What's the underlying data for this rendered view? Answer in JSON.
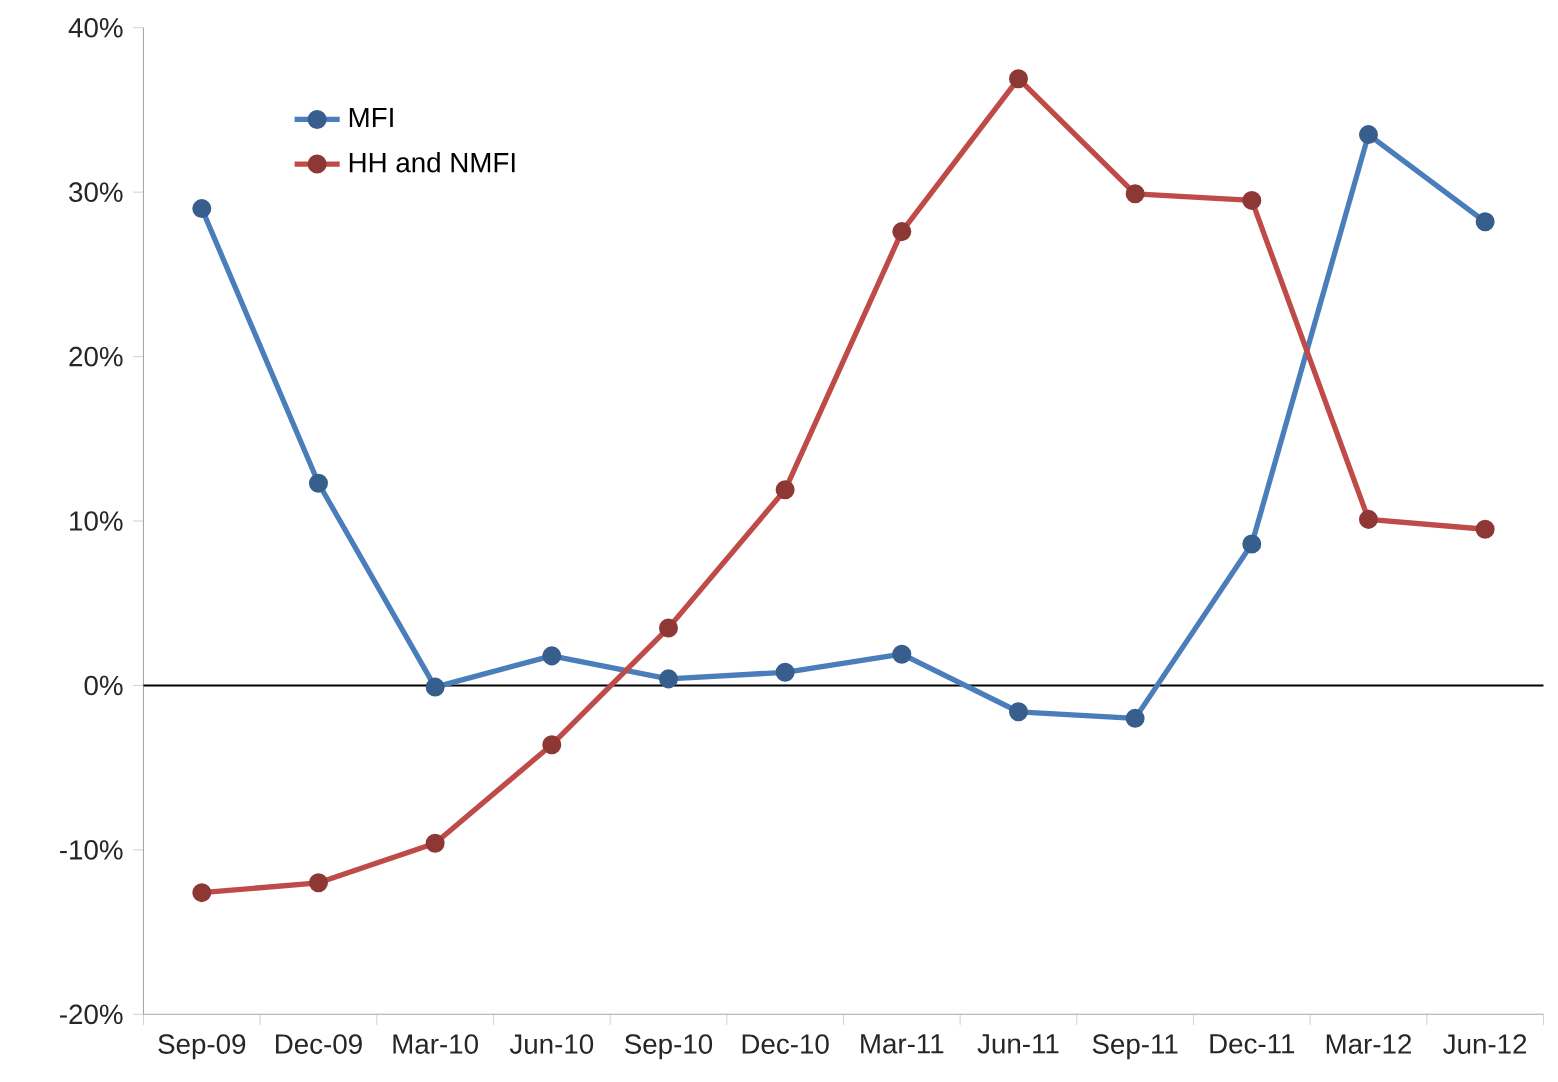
{
  "chart_data": {
    "type": "line",
    "categories": [
      "Sep-09",
      "Dec-09",
      "Mar-10",
      "Jun-10",
      "Sep-10",
      "Dec-10",
      "Mar-11",
      "Jun-11",
      "Sep-11",
      "Dec-11",
      "Mar-12",
      "Jun-12"
    ],
    "series": [
      {
        "name": "MFI",
        "color": "#4a7ebb",
        "values": [
          29.0,
          12.3,
          -0.1,
          1.8,
          0.4,
          0.8,
          1.9,
          -1.6,
          -2.0,
          8.6,
          33.5,
          28.2
        ]
      },
      {
        "name": "HH and NMFI",
        "color": "#be4b48",
        "values": [
          -12.6,
          -12.0,
          -9.6,
          -3.6,
          3.5,
          11.9,
          27.6,
          36.9,
          29.9,
          29.5,
          10.1,
          9.5
        ]
      }
    ],
    "ylim": [
      -20,
      40
    ],
    "yticks": [
      {
        "value": -20,
        "label": "-20%"
      },
      {
        "value": -10,
        "label": "-10%"
      },
      {
        "value": 0,
        "label": "0%"
      },
      {
        "value": 10,
        "label": "10%"
      },
      {
        "value": 20,
        "label": "20%"
      },
      {
        "value": 30,
        "label": "30%"
      },
      {
        "value": 40,
        "label": "40%"
      }
    ],
    "ref_lines": [
      {
        "axis": "y",
        "value": 0,
        "color": "#000000"
      }
    ],
    "grid": false,
    "legend": "top left",
    "marker": "circle",
    "line_style": "solid"
  }
}
